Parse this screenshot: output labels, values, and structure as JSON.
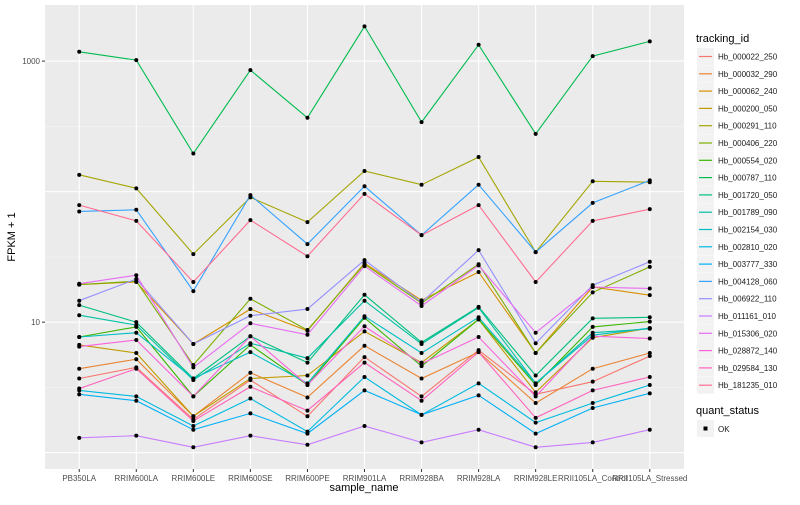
{
  "chart_data": {
    "type": "line",
    "title": "",
    "xlabel": "sample_name",
    "ylabel": "FPKM + 1",
    "y_scale": "log10",
    "ylim": [
      0.75,
      2690
    ],
    "y_ticks": [
      10,
      1000
    ],
    "y_tick_labels": [
      "10",
      "1000"
    ],
    "y_gridlines": [
      1,
      10,
      100,
      1000
    ],
    "grid": true,
    "background": "#EBEBEB",
    "legend_position": "right",
    "legend_title": "tracking_id",
    "shape_legend": {
      "title": "quant_status",
      "entries": [
        "OK"
      ]
    },
    "categories": [
      "PB350LA",
      "RRIM600LA",
      "RRIM600LE",
      "RRIM600SE",
      "RRIM600PE",
      "RRIM901LA",
      "RRIM928BA",
      "RRIM928LA",
      "RRIM928LE",
      "RRII105LA_Control",
      "RRII105LA_Stressed"
    ],
    "series": [
      {
        "name": "Hb_000022_250",
        "color": "#F8766D",
        "values": [
          3.7,
          4.5,
          1.8,
          3.6,
          1.9,
          5.4,
          2.7,
          6.1,
          2.8,
          3.5,
          5.5
        ]
      },
      {
        "name": "Hb_000032_290",
        "color": "#EA8331",
        "values": [
          4.4,
          5.2,
          1.9,
          4.1,
          2.65,
          6.6,
          3.7,
          5.9,
          2.4,
          4.4,
          5.8
        ]
      },
      {
        "name": "Hb_000062_240",
        "color": "#D89000",
        "values": [
          19.4,
          20.3,
          6.8,
          12.6,
          8.6,
          28.3,
          14.7,
          24.2,
          5.8,
          18.6,
          16.1
        ]
      },
      {
        "name": "Hb_000200_050",
        "color": "#C09B00",
        "values": [
          6.7,
          5.8,
          1.9,
          3.7,
          3.9,
          8.5,
          4.9,
          10.5,
          2.9,
          7.6,
          9.0
        ]
      },
      {
        "name": "Hb_000291_110",
        "color": "#A3A500",
        "values": [
          134.5,
          106,
          33.2,
          90.3,
          58.4,
          144,
          113,
          184,
          34.4,
          120,
          118
        ]
      },
      {
        "name": "Hb_000406_220",
        "color": "#7CAE00",
        "values": [
          19.4,
          20.6,
          4.7,
          15.1,
          8.7,
          27.8,
          14.0,
          27.8,
          5.8,
          16.9,
          26.5
        ]
      },
      {
        "name": "Hb_000554_020",
        "color": "#39B600",
        "values": [
          7.7,
          9.2,
          2.7,
          6.7,
          3.3,
          10.8,
          4.6,
          10.5,
          3.3,
          9.2,
          10.1
        ]
      },
      {
        "name": "Hb_000787_110",
        "color": "#00BB4E",
        "values": [
          1178,
          1018,
          196,
          853,
          368,
          1845,
          341,
          1334,
          277,
          1092,
          1416
        ]
      },
      {
        "name": "Hb_001720_050",
        "color": "#00BF7D",
        "values": [
          13.5,
          10.0,
          3.7,
          7.8,
          4.9,
          16.2,
          7.0,
          13.1,
          3.9,
          10.7,
          10.9
        ]
      },
      {
        "name": "Hb_001789_090",
        "color": "#00C1A3",
        "values": [
          11.3,
          9.5,
          3.6,
          6.9,
          5.3,
          14.6,
          6.8,
          12.9,
          3.4,
          8.3,
          8.9
        ]
      },
      {
        "name": "Hb_002154_030",
        "color": "#00BFC4",
        "values": [
          7.7,
          8.3,
          3.7,
          5.9,
          3.4,
          11.1,
          5.8,
          10.9,
          3.4,
          7.95,
          9.0
        ]
      },
      {
        "name": "Hb_002810_020",
        "color": "#00BAE0",
        "values": [
          3.0,
          2.7,
          1.6,
          2.6,
          1.45,
          3.8,
          1.95,
          3.4,
          1.7,
          2.4,
          3.3
        ]
      },
      {
        "name": "Hb_003777_330",
        "color": "#00B0F6",
        "values": [
          2.8,
          2.5,
          1.5,
          2.0,
          1.4,
          3.0,
          1.95,
          2.75,
          1.4,
          2.2,
          2.85
        ]
      },
      {
        "name": "Hb_004128_060",
        "color": "#35A2FF",
        "values": [
          70.5,
          72.6,
          17.3,
          94,
          39.6,
          110,
          46.4,
          113,
          34.4,
          82,
          122
        ]
      },
      {
        "name": "Hb_006922_110",
        "color": "#9590FF",
        "values": [
          14.6,
          21.4,
          6.8,
          11.2,
          12.6,
          29.9,
          14.2,
          35.6,
          6.9,
          19.2,
          29.0
        ]
      },
      {
        "name": "Hb_011161_010",
        "color": "#C77CFF",
        "values": [
          1.3,
          1.35,
          1.1,
          1.35,
          1.15,
          1.6,
          1.2,
          1.5,
          1.1,
          1.2,
          1.5
        ]
      },
      {
        "name": "Hb_015306_020",
        "color": "#E76BF3",
        "values": [
          19.7,
          22.9,
          4.5,
          9.8,
          8.0,
          26.9,
          13.3,
          27.2,
          8.3,
          18.6,
          18.1
        ]
      },
      {
        "name": "Hb_028872_140",
        "color": "#FA62DB",
        "values": [
          6.5,
          7.3,
          2.7,
          7.8,
          3.3,
          9.3,
          4.8,
          7.7,
          2.7,
          7.8,
          7.5
        ]
      },
      {
        "name": "Hb_029584_130",
        "color": "#FF62BC",
        "values": [
          3.1,
          4.4,
          1.75,
          3.2,
          2.1,
          4.9,
          2.5,
          5.9,
          1.85,
          3.0,
          3.8
        ]
      },
      {
        "name": "Hb_181235_010",
        "color": "#FF6C91",
        "values": [
          78.8,
          59.7,
          20.3,
          60.5,
          32,
          96.2,
          46.4,
          78.8,
          20.3,
          59.7,
          73.4
        ]
      }
    ]
  }
}
